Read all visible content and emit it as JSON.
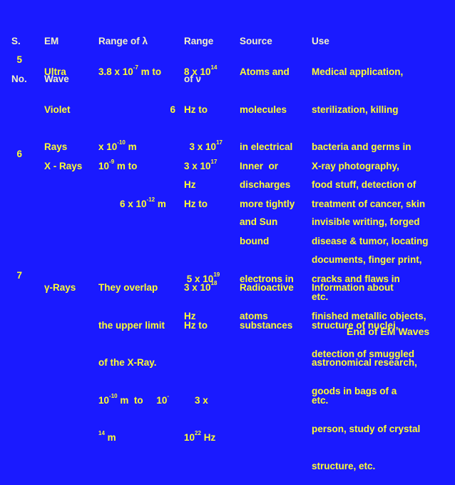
{
  "header": {
    "sno": [
      "S.",
      "No."
    ],
    "em": [
      "EM",
      "Wave"
    ],
    "lambda": "Range of λ",
    "freq": [
      "Range",
      "of ν"
    ],
    "source": "Source",
    "use": "Use"
  },
  "rows": [
    {
      "no": "5",
      "wave": [
        "Ultra",
        "Violet",
        "Rays"
      ],
      "lambda": {
        "a_base": "3.8 x 10",
        "a_exp": "-7",
        "a_tail": " m to",
        "b_lead": "6",
        "b_base": "x 10",
        "b_exp": "-10",
        "b_tail": " m"
      },
      "freq": {
        "a_base": "8 x 10",
        "a_exp": "14",
        "a_tail": "",
        "a2": "Hz to",
        "b_base": "3 x 10",
        "b_exp": "17",
        "b2": "Hz"
      },
      "source": [
        "Atoms and",
        "molecules",
        "in electrical",
        "discharges",
        "and Sun"
      ],
      "use": [
        "Medical application,",
        "sterilization, killing",
        "bacteria and germs in",
        "food stuff, detection of",
        "invisible writing, forged",
        "documents, finger print,",
        "etc."
      ]
    },
    {
      "no": "6",
      "wave": [
        "X - Rays"
      ],
      "lambda": {
        "a_base": "10",
        "a_exp": "-9",
        "a_tail": " m to",
        "b_base": "6 x 10",
        "b_exp": "-12",
        "b_tail": " m"
      },
      "freq": {
        "a_base": "3 x 10",
        "a_exp": "17",
        "a2": "Hz to",
        "b_base": "5 x 10",
        "b_exp": "19",
        "b2": "Hz"
      },
      "source": [
        "Inner  or",
        "more tightly",
        "bound",
        "electrons in",
        "atoms"
      ],
      "use": [
        "X-ray photography,",
        "treatment of cancer, skin",
        "disease & tumor, locating",
        "cracks and flaws in",
        "finished metallic objects,",
        "detection of smuggled",
        "goods in bags of a",
        "person, study of crystal",
        "structure, etc."
      ]
    },
    {
      "no": "7",
      "wave": [
        "γ-Rays"
      ],
      "lambda": {
        "l1": "They overlap",
        "l2": "the upper limit",
        "l3": "of the X-Ray.",
        "a_base": "10",
        "a_exp": "-10",
        "a_tail": " m  to     10",
        "a_exp2": "-",
        "b_exp": "14",
        "b_tail": " m"
      },
      "freq": {
        "a_base": "3 x 10",
        "a_exp": "18",
        "a2": "Hz to",
        "b1": "3 x",
        "b_base": "10",
        "b_exp": "22",
        "b_tail": " Hz"
      },
      "source": [
        "Radioactive",
        "substances"
      ],
      "use": [
        "Information about",
        "structure of nuclei,",
        "astronomical research,",
        "etc."
      ]
    }
  ],
  "footer": "End of EM Waves"
}
